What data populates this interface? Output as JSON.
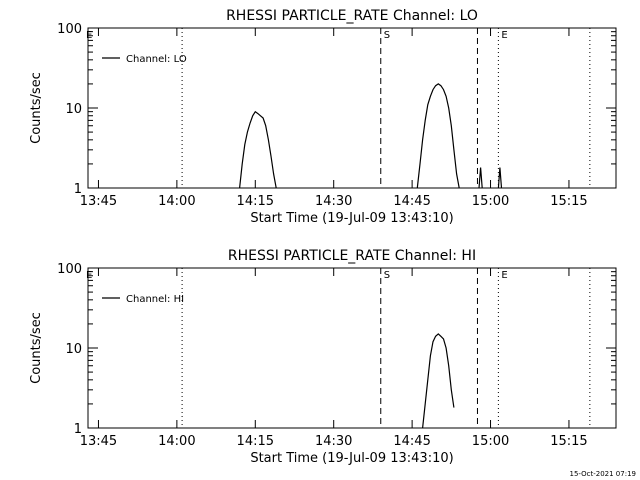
{
  "footer": {
    "timestamp": "15-Oct-2021 07:19"
  },
  "chart_data": [
    {
      "type": "line",
      "title": "RHESSI PARTICLE_RATE Channel: LO",
      "xlabel": "Start Time (19-Jul-09 13:43:10)",
      "ylabel": "Counts/sec",
      "yscale": "log",
      "xlim": [
        "13:43",
        "15:24"
      ],
      "ylim": [
        1,
        100
      ],
      "x_ticks": [
        "13:45",
        "14:00",
        "14:15",
        "14:30",
        "14:45",
        "15:00",
        "15:15"
      ],
      "y_ticks": [
        "1",
        "10",
        "100"
      ],
      "legend": {
        "position": "top-left",
        "entries": [
          "Channel: LO"
        ]
      },
      "series": [
        {
          "name": "Channel: LO",
          "segments": [
            [
              [
                "14:12",
                1.0
              ],
              [
                "14:12.5",
                2.0
              ],
              [
                "14:13",
                3.5
              ],
              [
                "14:13.5",
                5.0
              ],
              [
                "14:14",
                6.5
              ],
              [
                "14:14.5",
                8.0
              ],
              [
                "14:15",
                9.0
              ],
              [
                "14:15.5",
                8.5
              ],
              [
                "14:16",
                8.0
              ],
              [
                "14:16.5",
                7.5
              ],
              [
                "14:17",
                6.0
              ],
              [
                "14:17.5",
                4.0
              ],
              [
                "14:18",
                2.5
              ],
              [
                "14:18.5",
                1.5
              ],
              [
                "14:19",
                1.0
              ]
            ],
            [
              [
                "14:46",
                1.0
              ],
              [
                "14:46.5",
                2.0
              ],
              [
                "14:47",
                4.0
              ],
              [
                "14:47.5",
                7.0
              ],
              [
                "14:48",
                11.0
              ],
              [
                "14:48.5",
                14.0
              ],
              [
                "14:49",
                17.0
              ],
              [
                "14:49.5",
                19.0
              ],
              [
                "14:50",
                20.0
              ],
              [
                "14:50.5",
                19.0
              ],
              [
                "14:51",
                17.0
              ],
              [
                "14:51.5",
                14.0
              ],
              [
                "14:52",
                10.0
              ],
              [
                "14:52.5",
                6.0
              ],
              [
                "14:53",
                3.0
              ],
              [
                "14:53.5",
                1.5
              ],
              [
                "14:54",
                1.0
              ]
            ],
            [
              [
                "14:57.8",
                1.0
              ],
              [
                "14:58.1",
                1.8
              ],
              [
                "14:58.4",
                1.0
              ]
            ],
            [
              [
                "15:01.5",
                1.0
              ],
              [
                "15:01.8",
                1.8
              ],
              [
                "15:02.1",
                1.0
              ]
            ]
          ]
        }
      ],
      "vlines": [
        {
          "x": "14:01",
          "style": "dotted",
          "label": ""
        },
        {
          "x": "14:39",
          "style": "dashed",
          "label": "S"
        },
        {
          "x": "14:57.5",
          "style": "dashed",
          "label": ""
        },
        {
          "x": "15:01.5",
          "style": "dotted",
          "label": "E"
        },
        {
          "x": "15:19",
          "style": "dotted",
          "label": ""
        }
      ],
      "corner_labels": [
        "E"
      ]
    },
    {
      "type": "line",
      "title": "RHESSI PARTICLE_RATE Channel: HI",
      "xlabel": "Start Time (19-Jul-09 13:43:10)",
      "ylabel": "Counts/sec",
      "yscale": "log",
      "xlim": [
        "13:43",
        "15:24"
      ],
      "ylim": [
        1,
        100
      ],
      "x_ticks": [
        "13:45",
        "14:00",
        "14:15",
        "14:30",
        "14:45",
        "15:00",
        "15:15"
      ],
      "y_ticks": [
        "1",
        "10",
        "100"
      ],
      "legend": {
        "position": "top-left",
        "entries": [
          "Channel: HI"
        ]
      },
      "series": [
        {
          "name": "Channel: HI",
          "segments": [
            [
              [
                "14:47",
                1.0
              ],
              [
                "14:47.5",
                2.0
              ],
              [
                "14:48",
                4.0
              ],
              [
                "14:48.5",
                8.0
              ],
              [
                "14:49",
                12.0
              ],
              [
                "14:49.5",
                14.0
              ],
              [
                "14:50",
                15.0
              ],
              [
                "14:50.5",
                14.0
              ],
              [
                "14:51",
                13.0
              ],
              [
                "14:51.5",
                10.0
              ],
              [
                "14:52",
                6.0
              ],
              [
                "14:52.5",
                3.0
              ],
              [
                "14:53",
                1.8
              ]
            ]
          ]
        }
      ],
      "vlines": [
        {
          "x": "14:01",
          "style": "dotted",
          "label": ""
        },
        {
          "x": "14:39",
          "style": "dashed",
          "label": "S"
        },
        {
          "x": "14:57.5",
          "style": "dashed",
          "label": ""
        },
        {
          "x": "15:01.5",
          "style": "dotted",
          "label": "E"
        },
        {
          "x": "15:19",
          "style": "dotted",
          "label": ""
        }
      ],
      "corner_labels": [
        "E"
      ]
    }
  ]
}
